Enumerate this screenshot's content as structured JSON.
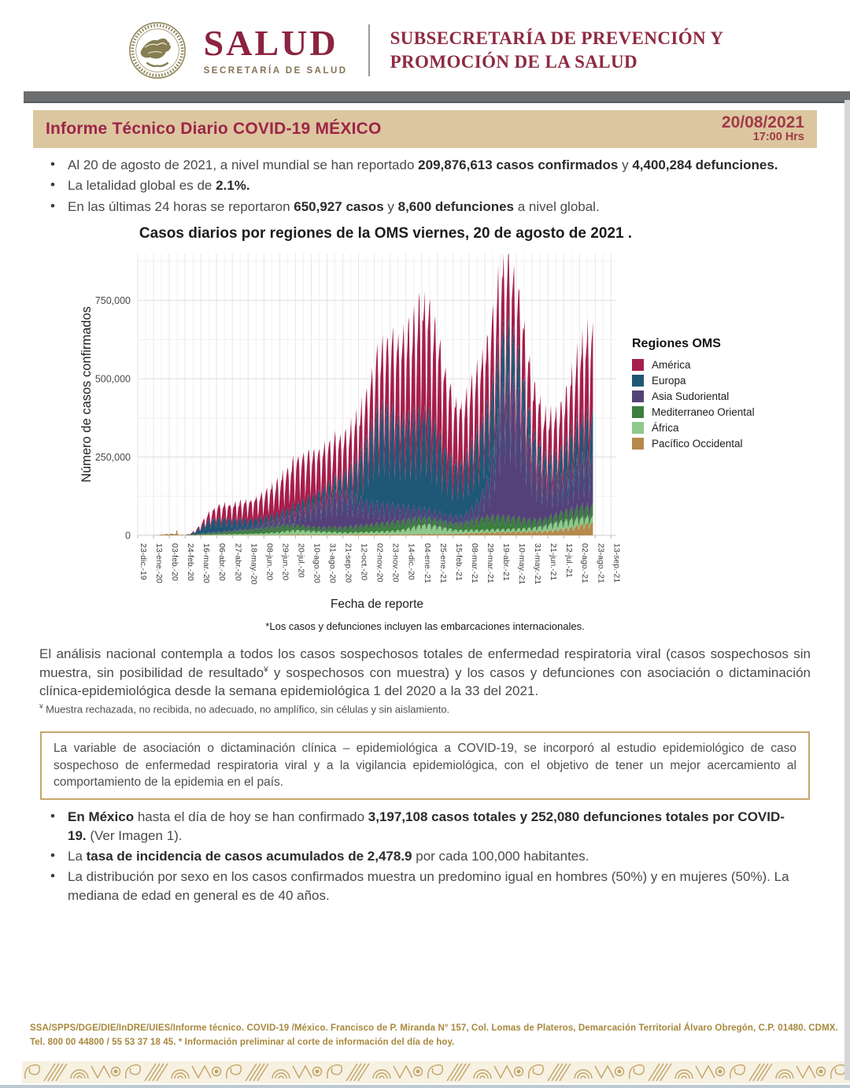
{
  "header": {
    "seal_name": "escudo-nacional-mexico",
    "logo_text": "SALUD",
    "logo_subtext": "SECRETARÍA DE SALUD",
    "subsecretaria_line1": "SUBSECRETARÍA DE PREVENCIÓN Y",
    "subsecretaria_line2": "PROMOCIÓN DE LA SALUD"
  },
  "title_bar": {
    "title": "Informe Técnico Diario COVID-19 MÉXICO",
    "date": "20/08/2021",
    "time": "17:00 Hrs",
    "bg_color": "#dcc69f",
    "accent_color": "#9d2449"
  },
  "global_bullets": [
    [
      {
        "t": "Al 20 de agosto de 2021, a nivel mundial se han reportado "
      },
      {
        "t": "209,876,613 casos confirmados",
        "b": true
      },
      {
        "t": " y "
      },
      {
        "t": "4,400,284 defunciones.",
        "b": true
      }
    ],
    [
      {
        "t": "La letalidad global es de "
      },
      {
        "t": "2.1%.",
        "b": true
      }
    ],
    [
      {
        "t": "En las últimas 24 horas se reportaron "
      },
      {
        "t": "650,927 casos",
        "b": true
      },
      {
        "t": " y "
      },
      {
        "t": "8,600 defunciones",
        "b": true
      },
      {
        "t": " a nivel global."
      }
    ]
  ],
  "chart_data": {
    "type": "bar",
    "stacked": true,
    "title": "Casos diarios por regiones de la OMS viernes, 20 de agosto de 2021 .",
    "ylabel": "Número de casos confirmados",
    "xlabel": "Fecha de reporte",
    "footnote": "*Los casos y defunciones incluyen las embarcaciones internacionales.",
    "legend_title": "Regiones OMS",
    "legend_position": "right",
    "grid": true,
    "ylim": [
      0,
      900000
    ],
    "yticks": [
      0,
      250000,
      500000,
      750000
    ],
    "ytick_labels": [
      "0",
      "250,000",
      "500,000",
      "750,000"
    ],
    "xtick_labels": [
      "23-dic.-19",
      "13-ene.-20",
      "03-feb.-20",
      "24-feb.-20",
      "16-mar.-20",
      "06-abr.-20",
      "27-abr.-20",
      "18-may.-20",
      "08-jun.-20",
      "29-jun.-20",
      "20-jul.-20",
      "10-ago.-20",
      "31-ago.-20",
      "21-sep.-20",
      "12-oct.-20",
      "02-nov.-20",
      "23-nov.-20",
      "14-dic.-20",
      "04-ene.-21",
      "25-ene.-21",
      "15-feb.-21",
      "08-mar.-21",
      "29-mar.-21",
      "19-abr.-21",
      "10-may.-21",
      "31-may.-21",
      "21-jun.-21",
      "12-jul.-21",
      "02-ago.-21",
      "23-ago.-21",
      "13-sep.-21"
    ],
    "xtick_interval_weeks": 3,
    "weeks_start": "23-dic.-19",
    "n_weeks": 87,
    "units": "casos diarios promedio semanal, en miles",
    "series": [
      {
        "name": "Pacífico Occidental",
        "color": "#b5894c",
        "values_thousands": [
          0,
          0,
          0,
          0,
          1,
          3,
          4,
          5,
          2,
          1,
          1,
          1,
          1,
          1,
          1,
          1,
          1,
          1,
          1,
          1,
          1,
          1,
          1,
          1,
          1,
          1,
          1,
          1,
          2,
          2,
          2,
          2,
          2,
          2,
          2,
          2,
          2,
          2,
          2,
          2,
          2,
          3,
          3,
          3,
          3,
          3,
          3,
          3,
          3,
          3,
          3,
          3,
          3,
          3,
          4,
          4,
          4,
          4,
          4,
          4,
          4,
          5,
          6,
          6,
          7,
          7,
          8,
          8,
          9,
          9,
          9,
          10,
          10,
          10,
          11,
          11,
          12,
          12,
          13,
          14,
          16,
          18,
          21,
          24,
          28,
          32,
          35
        ]
      },
      {
        "name": "África",
        "color": "#8fc98c",
        "values_thousands": [
          0,
          0,
          0,
          0,
          0,
          0,
          0,
          0,
          0,
          0,
          0,
          0.3,
          0.5,
          1,
          1.5,
          2,
          2.2,
          2.4,
          2.6,
          2.8,
          3,
          3.5,
          4,
          4.5,
          5,
          6,
          7,
          8,
          10,
          11,
          12,
          12,
          11,
          10,
          9,
          8.5,
          8,
          7.5,
          7,
          6.5,
          6,
          6,
          6,
          6.5,
          7,
          7.5,
          8,
          8.5,
          9,
          10,
          12,
          15,
          18,
          22,
          25,
          26,
          24,
          21,
          18,
          15,
          12,
          10,
          9,
          8.5,
          8,
          8,
          8,
          8,
          8,
          8,
          8,
          8,
          8,
          8.5,
          9,
          9.5,
          11,
          13,
          16,
          19,
          21,
          22,
          22,
          21,
          19,
          17,
          15
        ]
      },
      {
        "name": "Mediterraneo Oriental",
        "color": "#3b7f3e",
        "values_thousands": [
          0,
          0,
          0,
          0,
          0,
          0,
          0,
          0,
          0,
          0,
          1,
          2,
          3,
          4,
          4.5,
          5,
          6,
          7,
          8,
          10,
          11,
          12,
          13,
          14,
          15,
          16,
          17,
          18,
          17,
          16,
          15,
          14,
          13,
          12,
          12,
          12,
          12,
          13,
          14,
          15,
          16,
          17,
          18,
          19,
          20,
          21,
          22,
          23,
          25,
          26,
          26,
          25,
          23,
          21,
          20,
          19,
          18,
          18,
          18,
          18,
          18,
          19,
          21,
          24,
          28,
          32,
          35,
          36,
          36,
          35,
          34,
          32,
          30,
          28,
          25,
          22,
          21,
          20,
          20,
          21,
          23,
          25,
          27,
          29,
          30,
          31,
          32
        ]
      },
      {
        "name": "Asia Sudoriental",
        "color": "#55417a",
        "values_thousands": [
          0,
          0,
          0,
          0,
          0,
          0,
          0,
          0,
          0,
          0,
          0,
          0,
          0.5,
          1,
          1.5,
          2,
          2.5,
          3,
          3.5,
          4,
          4.5,
          5,
          6,
          8,
          10,
          12,
          14,
          17,
          21,
          26,
          32,
          40,
          48,
          55,
          62,
          68,
          75,
          83,
          88,
          90,
          86,
          80,
          75,
          68,
          60,
          55,
          50,
          47,
          45,
          42,
          38,
          35,
          30,
          27,
          25,
          23,
          21,
          20,
          19,
          18,
          18,
          19,
          21,
          25,
          35,
          55,
          80,
          120,
          200,
          300,
          350,
          360,
          340,
          300,
          240,
          180,
          150,
          130,
          115,
          100,
          95,
          95,
          100,
          110,
          120,
          125,
          128
        ]
      },
      {
        "name": "Europa",
        "color": "#1f5776",
        "values_thousands": [
          0,
          0,
          0,
          0,
          0,
          0,
          0,
          0,
          0,
          0.1,
          2,
          8,
          18,
          28,
          33,
          36,
          34,
          31,
          28,
          26,
          24,
          22,
          20,
          19,
          18,
          17,
          17,
          17,
          18,
          19,
          20,
          22,
          24,
          26,
          28,
          30,
          33,
          38,
          42,
          48,
          60,
          80,
          105,
          140,
          180,
          220,
          245,
          250,
          245,
          235,
          230,
          232,
          235,
          240,
          260,
          255,
          240,
          215,
          185,
          160,
          142,
          140,
          145,
          155,
          170,
          185,
          195,
          190,
          180,
          165,
          150,
          130,
          112,
          95,
          78,
          62,
          52,
          46,
          45,
          50,
          62,
          78,
          92,
          100,
          105,
          108,
          112
        ]
      },
      {
        "name": "América",
        "color": "#a61e4c",
        "values_thousands": [
          0,
          0,
          0,
          0,
          0,
          0,
          0,
          0,
          0,
          0,
          1,
          3,
          7,
          14,
          22,
          30,
          33,
          35,
          37,
          40,
          43,
          46,
          50,
          55,
          60,
          66,
          74,
          84,
          95,
          105,
          112,
          115,
          113,
          110,
          106,
          102,
          100,
          99,
          98,
          97,
          98,
          100,
          104,
          110,
          120,
          132,
          145,
          158,
          172,
          188,
          205,
          220,
          232,
          245,
          300,
          270,
          258,
          240,
          215,
          185,
          160,
          148,
          145,
          148,
          152,
          158,
          163,
          166,
          167,
          165,
          160,
          152,
          145,
          138,
          130,
          122,
          113,
          105,
          100,
          100,
          105,
          115,
          130,
          150,
          172,
          195,
          215
        ]
      }
    ],
    "weekly_reporting_modulation": [
      0.8,
      1.05,
      1.15,
      1.22,
      1.3,
      1.05,
      0.55
    ],
    "last_day_index": 606,
    "isolated_spike": {
      "day_index": 52,
      "value_thousands": 15,
      "series": "Pacífico Occidental"
    }
  },
  "analysis_paragraph": [
    {
      "t": "El análisis nacional contempla a todos los casos sospechosos totales de enfermedad respiratoria viral (casos sospechosos sin muestra, sin posibilidad de resultado"
    },
    {
      "t": "¥",
      "sup": true
    },
    {
      "t": " y sospechosos con muestra) y los casos y defunciones con asociación o dictaminación clínica-epidemiológica desde la semana epidemiológica 1 del 2020 a la 33 del 2021."
    }
  ],
  "analysis_footnote": [
    {
      "t": "¥",
      "sup": true
    },
    {
      "t": " Muestra rechazada, no recibida, no adecuado, no amplífico, sin células y sin aislamiento."
    }
  ],
  "note_box": {
    "text": "La variable de asociación o dictaminación clínica – epidemiológica a COVID-19, se incorporó al estudio epidemiológico de caso sospechoso de enfermedad respiratoria viral y a la vigilancia epidemiológica, con el objetivo de tener un mejor acercamiento al comportamiento de la epidemia en el país.",
    "border_color": "#c8a66b"
  },
  "mexico_bullets": [
    [
      {
        "t": "En México",
        "b": true
      },
      {
        "t": " hasta el día de hoy se han confirmado "
      },
      {
        "t": "3,197,108 casos totales y 252,080 defunciones totales por COVID-19.",
        "b": true
      },
      {
        "t": " (Ver Imagen 1)."
      }
    ],
    [
      {
        "t": "La "
      },
      {
        "t": "tasa de incidencia de casos acumulados de 2,478.9",
        "b": true
      },
      {
        "t": " por cada 100,000 habitantes."
      }
    ],
    [
      {
        "t": "La distribución por sexo en los casos confirmados muestra un predomino igual en hombres (50%) y en mujeres (50%). La mediana de edad en general es de 40 años."
      }
    ]
  ],
  "footer": {
    "line1": "SSA/SPPS/DGE/DIE/InDRE/UIES/Informe técnico. COVID-19 /México. Francisco de P. Miranda N° 157, Col. Lomas de Plateros, Demarcación Territorial Álvaro Obregón, C.P. 01480. CDMX.",
    "line2": "Tel. 800 00 44800 / 55 53 37 18 45. * Información preliminar al corte de información del día de hoy.",
    "text_color": "#a8893d"
  }
}
